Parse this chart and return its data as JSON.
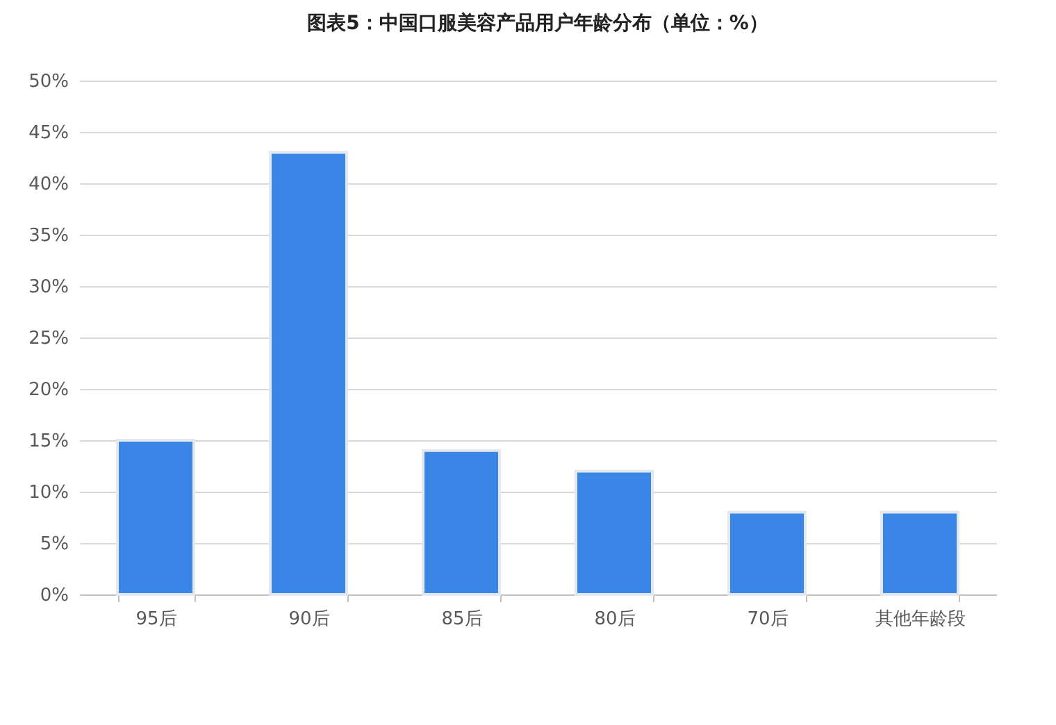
{
  "chart_data": {
    "type": "bar",
    "title": "图表5：中国口服美容产品用户年龄分布（单位：%）",
    "categories": [
      "95后",
      "90后",
      "85后",
      "80后",
      "70后",
      "其他年龄段"
    ],
    "values": [
      15,
      43,
      14,
      12,
      8,
      8
    ],
    "color": "#3a86e6",
    "ylim": [
      0,
      50
    ],
    "yticks": [
      {
        "value": 0,
        "label": "0%"
      },
      {
        "value": 5,
        "label": "5%"
      },
      {
        "value": 10,
        "label": "10%"
      },
      {
        "value": 15,
        "label": "15%"
      },
      {
        "value": 20,
        "label": "20%"
      },
      {
        "value": 25,
        "label": "25%"
      },
      {
        "value": 30,
        "label": "30%"
      },
      {
        "value": 35,
        "label": "35%"
      },
      {
        "value": 40,
        "label": "40%"
      },
      {
        "value": 45,
        "label": "45%"
      },
      {
        "value": 50,
        "label": "50%"
      }
    ],
    "grid": "y"
  }
}
